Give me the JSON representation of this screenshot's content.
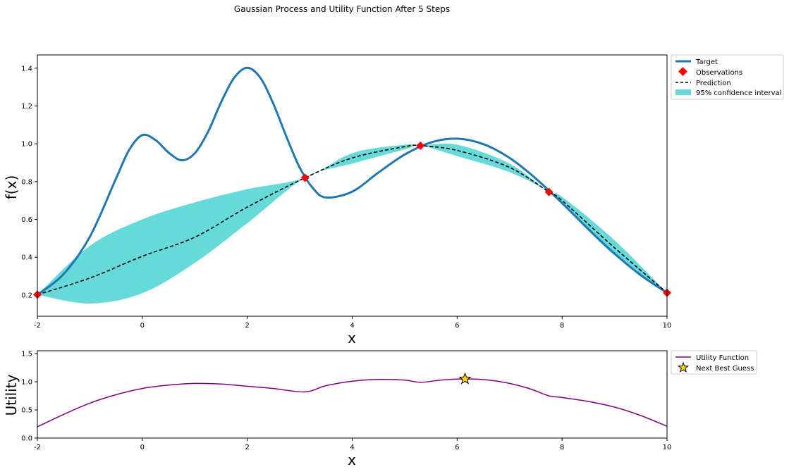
{
  "chart_data": [
    {
      "type": "line",
      "title": "Gaussian Process and Utility Function After 5 Steps",
      "xlabel": "x",
      "ylabel": "f(x)",
      "xlim": [
        -2,
        10
      ],
      "ylim": [
        0.088,
        1.47
      ],
      "xticks": [
        "-2",
        "0",
        "2",
        "4",
        "6",
        "8",
        "10"
      ],
      "yticks": [
        "0.2",
        "0.4",
        "0.6",
        "0.8",
        "1.0",
        "1.2",
        "1.4"
      ],
      "legend_position": "outside-top-right",
      "legend": [
        "Target",
        "Observations",
        "Prediction",
        "95% confidence interval"
      ],
      "colors": {
        "target": "#1f77b4",
        "observations": "#ff0000",
        "prediction": "#000000",
        "ci": "#66d9d9"
      },
      "target": {
        "x": [
          -2,
          -1.5,
          -1,
          -0.5,
          -0.25,
          0,
          0.25,
          0.5,
          0.75,
          1,
          1.25,
          1.5,
          1.75,
          2,
          2.25,
          2.5,
          2.75,
          3,
          3.25,
          3.5,
          4,
          4.5,
          5,
          5.5,
          6,
          6.5,
          7,
          7.5,
          8,
          8.5,
          9,
          9.5,
          10
        ],
        "y": [
          0.202,
          0.311,
          0.508,
          0.817,
          0.968,
          1.046,
          1.02,
          0.954,
          0.913,
          0.95,
          1.062,
          1.219,
          1.349,
          1.402,
          1.349,
          1.21,
          1.035,
          0.874,
          0.766,
          0.716,
          0.747,
          0.848,
          0.943,
          1.007,
          1.027,
          0.998,
          0.925,
          0.816,
          0.686,
          0.549,
          0.419,
          0.305,
          0.212
        ]
      },
      "observations": {
        "x": [
          -2,
          3.1,
          5.3,
          7.75,
          10
        ],
        "y": [
          0.202,
          0.82,
          0.99,
          0.745,
          0.212
        ]
      },
      "prediction": {
        "x": [
          -2,
          -1,
          0,
          1,
          2,
          3.1,
          4,
          5,
          5.3,
          6,
          7,
          7.75,
          8,
          9,
          10
        ],
        "y": [
          0.202,
          0.29,
          0.405,
          0.506,
          0.665,
          0.82,
          0.925,
          0.985,
          0.99,
          0.965,
          0.875,
          0.745,
          0.7,
          0.45,
          0.212
        ]
      },
      "ci_upper": {
        "x": [
          -2,
          -1,
          0,
          1,
          2,
          3.1,
          4,
          5,
          5.3,
          6,
          7,
          7.75,
          8,
          9,
          10
        ],
        "y": [
          0.202,
          0.46,
          0.6,
          0.69,
          0.76,
          0.82,
          0.95,
          0.995,
          0.99,
          0.995,
          0.895,
          0.745,
          0.72,
          0.49,
          0.212
        ]
      },
      "ci_lower": {
        "x": [
          -2,
          -1,
          0,
          1,
          2,
          3.1,
          4,
          5,
          5.3,
          6,
          7,
          7.75,
          8,
          9,
          10
        ],
        "y": [
          0.202,
          0.155,
          0.21,
          0.37,
          0.58,
          0.82,
          0.895,
          0.97,
          0.99,
          0.935,
          0.85,
          0.745,
          0.68,
          0.41,
          0.212
        ]
      }
    },
    {
      "type": "line",
      "xlabel": "x",
      "ylabel": "Utility",
      "xlim": [
        -2,
        10
      ],
      "ylim": [
        0,
        1.55
      ],
      "xticks": [
        "-2",
        "0",
        "2",
        "4",
        "6",
        "8",
        "10"
      ],
      "yticks": [
        "0.0",
        "0.5",
        "1.0",
        "1.5"
      ],
      "legend_position": "outside-top-right",
      "legend": [
        "Utility Function",
        "Next Best Guess"
      ],
      "colors": {
        "utility": "#800080",
        "guess": "#ffd700"
      },
      "utility": {
        "x": [
          -2,
          -1.5,
          -1,
          -0.5,
          0,
          0.5,
          1,
          1.5,
          2,
          2.5,
          3.1,
          3.5,
          4,
          4.5,
          5,
          5.3,
          5.7,
          6.15,
          6.6,
          7,
          7.4,
          7.75,
          8,
          8.5,
          9,
          9.5,
          10
        ],
        "y": [
          0.2,
          0.42,
          0.62,
          0.77,
          0.88,
          0.94,
          0.97,
          0.96,
          0.92,
          0.88,
          0.82,
          0.93,
          1.01,
          1.04,
          1.03,
          0.99,
          1.03,
          1.05,
          1.03,
          0.97,
          0.87,
          0.75,
          0.72,
          0.65,
          0.55,
          0.4,
          0.21
        ]
      },
      "next_best_guess": {
        "x": 6.15,
        "y": 1.05
      }
    }
  ]
}
